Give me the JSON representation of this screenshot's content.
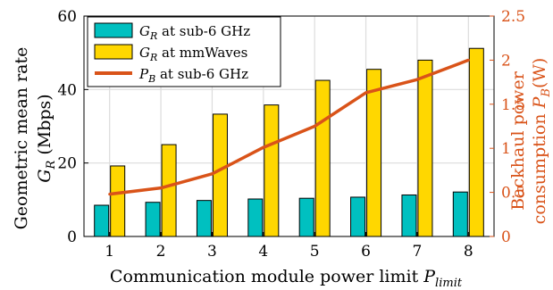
{
  "chart_data": {
    "type": "bar",
    "categories": [
      "1",
      "2",
      "3",
      "4",
      "5",
      "6",
      "7",
      "8"
    ],
    "series": [
      {
        "name": "G_R at sub-6 GHz",
        "kind": "bar",
        "axis": "left",
        "color": "#00c0c0",
        "values": [
          8.5,
          9.3,
          9.8,
          10.2,
          10.4,
          10.7,
          11.3,
          12.1
        ]
      },
      {
        "name": "G_R at mmWaves",
        "kind": "bar",
        "axis": "left",
        "color": "#ffd700",
        "values": [
          19.2,
          25.0,
          33.3,
          35.8,
          42.5,
          45.5,
          48.0,
          51.2
        ]
      },
      {
        "name": "P_B at sub-6 GHz",
        "kind": "line",
        "axis": "right",
        "color": "#d95319",
        "values": [
          0.48,
          0.55,
          0.71,
          1.01,
          1.25,
          1.63,
          1.78,
          2.0
        ]
      }
    ],
    "xlabel": "Communication module power limit P_limit",
    "ylabel_left": [
      "Geometric mean rate",
      "G_R (Mbps)"
    ],
    "ylabel_right": [
      "Backhaul power",
      "consumption P_B(W)"
    ],
    "ylim_left": [
      0,
      60
    ],
    "ylim_right": [
      0,
      2.5
    ],
    "yticks_left": [
      "0",
      "20",
      "40",
      "60"
    ],
    "yticks_right": [
      "0",
      "0.5",
      "1",
      "1.5",
      "2",
      "2.5"
    ],
    "grid": true,
    "legend_position": "top-left"
  },
  "legend": {
    "items": [
      {
        "italic": "G",
        "sub": "R",
        "rest": " at sub-6 GHz"
      },
      {
        "italic": "G",
        "sub": "R",
        "rest": " at mmWaves"
      },
      {
        "italic": "P",
        "sub": "B",
        "rest": " at sub-6 GHz"
      }
    ]
  },
  "labels": {
    "left_line1": "Geometric mean rate",
    "left_line2_pre": "G",
    "left_line2_sub": "R",
    "left_line2_post": " (Mbps)",
    "right_line1": "Backhaul power",
    "right_line2_pre": "consumption ",
    "right_line2_var": "P",
    "right_line2_sub": "B",
    "right_line2_post": "(W)",
    "x_pre": "Communication module power limit ",
    "x_var": "P",
    "x_sub": "limit"
  }
}
